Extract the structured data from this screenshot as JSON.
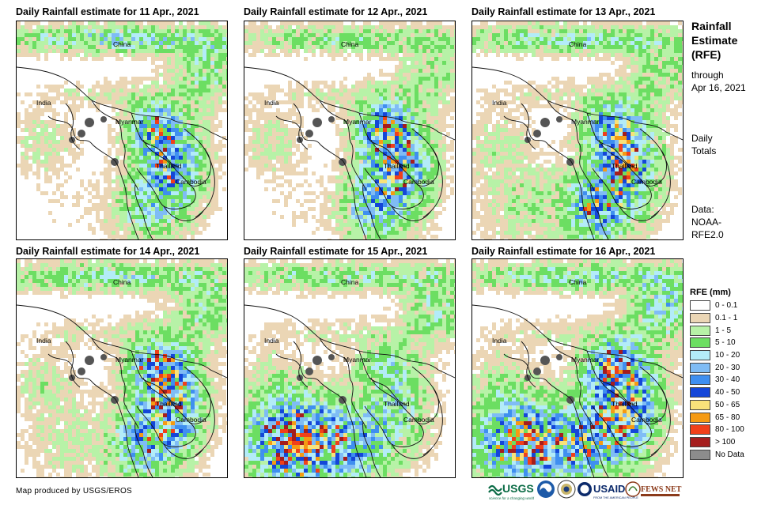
{
  "panels": [
    {
      "title": "Daily Rainfall estimate for 11 Apr., 2021"
    },
    {
      "title": "Daily Rainfall estimate for 12 Apr., 2021"
    },
    {
      "title": "Daily Rainfall estimate for 13 Apr., 2021"
    },
    {
      "title": "Daily Rainfall estimate for 14 Apr., 2021"
    },
    {
      "title": "Daily Rainfall estimate for 15 Apr., 2021"
    },
    {
      "title": "Daily Rainfall estimate for 16 Apr., 2021"
    }
  ],
  "map_labels": {
    "china": "China",
    "india": "India",
    "myanmar": "Myanmar",
    "thailand": "Thailand",
    "cambodia": "Cambodia"
  },
  "sidebar": {
    "title_line1": "Rainfall",
    "title_line2": "Estimate",
    "title_line3": "(RFE)",
    "through": "through",
    "date": "Apr 16, 2021",
    "daily": "Daily",
    "totals": "Totals",
    "data_label": "Data:",
    "data_source_1": "NOAA-",
    "data_source_2": "RFE2.0"
  },
  "legend": {
    "title": "RFE (mm)",
    "items": [
      {
        "label": "0 - 0.1",
        "color": "#ffffff"
      },
      {
        "label": "0.1 - 1",
        "color": "#ebd6b5"
      },
      {
        "label": "1 - 5",
        "color": "#b7f2a7"
      },
      {
        "label": "5 - 10",
        "color": "#6cde62"
      },
      {
        "label": "10 - 20",
        "color": "#b3ecf8"
      },
      {
        "label": "20 - 30",
        "color": "#7fbcf5"
      },
      {
        "label": "30 - 40",
        "color": "#3f8ff0"
      },
      {
        "label": "40 - 50",
        "color": "#1446d8"
      },
      {
        "label": "50 - 65",
        "color": "#f8e27a"
      },
      {
        "label": "65 - 80",
        "color": "#f59a13"
      },
      {
        "label": "80 - 100",
        "color": "#f0401a"
      },
      {
        "label": "> 100",
        "color": "#a51d1d"
      },
      {
        "label": "No Data",
        "color": "#8c8c8c"
      }
    ]
  },
  "credit": "Map produced by USGS/EROS",
  "logos": {
    "usgs": "USGS",
    "usgs_tagline": "science for a changing world",
    "usaid": "USAID",
    "usaid_tagline": "FROM THE AMERICAN PEOPLE",
    "fewsnet": "FEWS NET"
  }
}
